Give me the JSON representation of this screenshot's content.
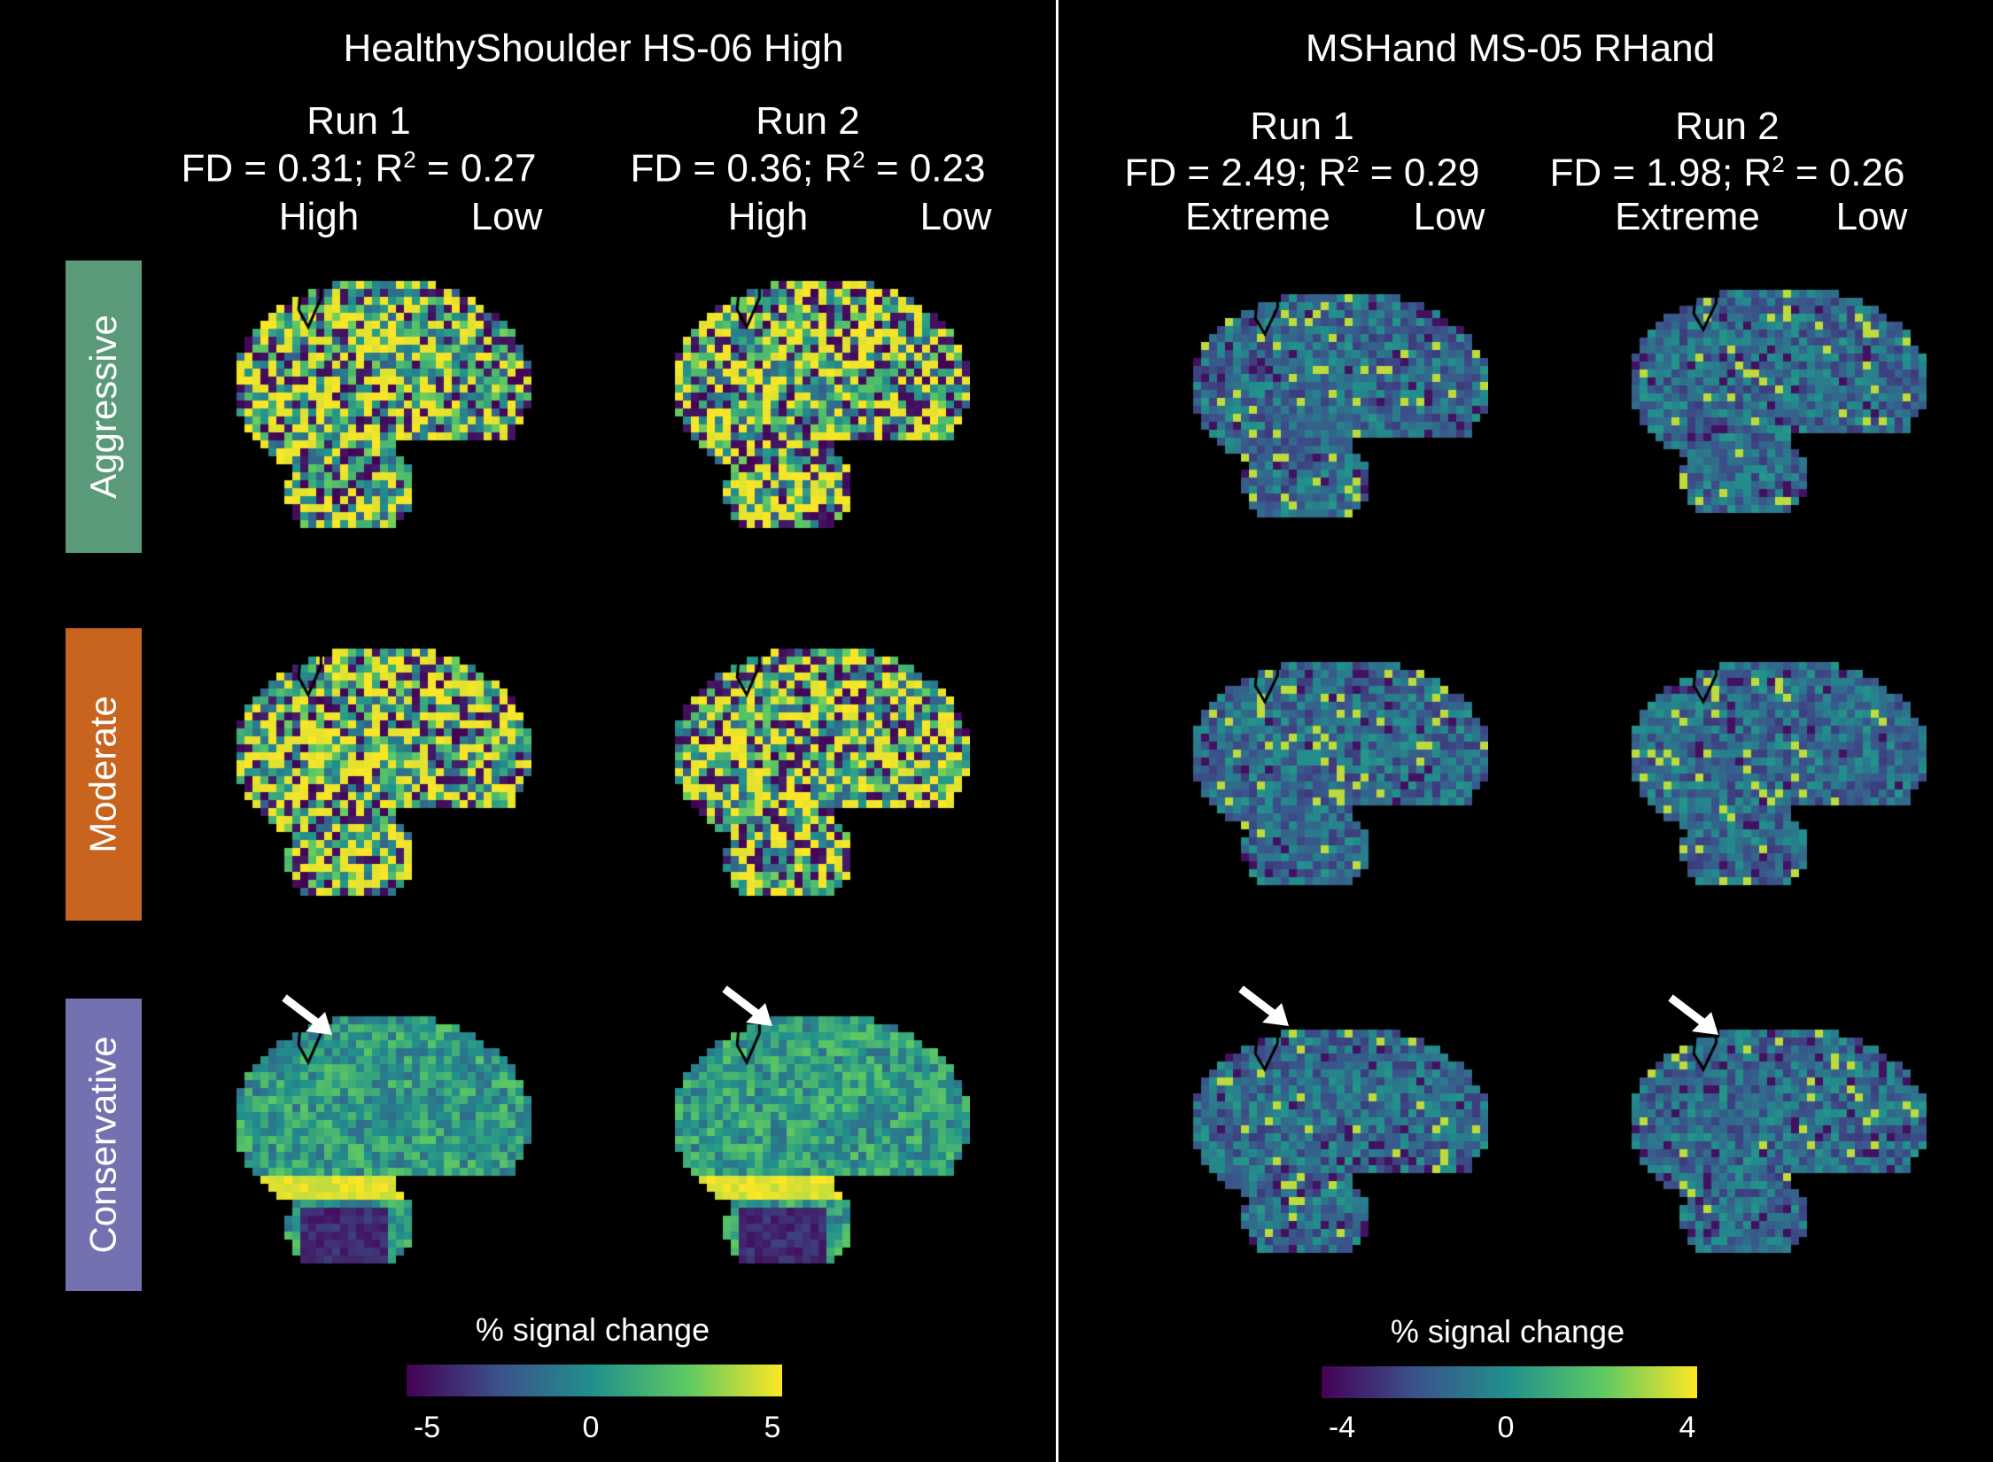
{
  "panels": [
    {
      "title": "HealthyShoulder HS-06 High",
      "runs": [
        {
          "run": "Run 1",
          "fd_label": "FD = 0.31; R",
          "fd_sup": "2",
          "fd_rest": " = 0.27",
          "level_a": "High",
          "level_b": "Low"
        },
        {
          "run": "Run 2",
          "fd_label": "FD = 0.36; R",
          "fd_sup": "2",
          "fd_rest": " = 0.23",
          "level_a": "High",
          "level_b": "Low"
        }
      ],
      "colorbar": {
        "label": "% signal change",
        "ticks": [
          "-5",
          "0",
          "5"
        ]
      }
    },
    {
      "title": "MSHand MS-05 RHand",
      "runs": [
        {
          "run": "Run 1",
          "fd_label": "FD = 2.49; R",
          "fd_sup": "2",
          "fd_rest": " = 0.29",
          "level_a": "Extreme",
          "level_b": "Low"
        },
        {
          "run": "Run 2",
          "fd_label": "FD = 1.98; R",
          "fd_sup": "2",
          "fd_rest": " = 0.26",
          "level_a": "Extreme",
          "level_b": "Low"
        }
      ],
      "colorbar": {
        "label": "% signal change",
        "ticks": [
          "-4",
          "0",
          "4"
        ]
      }
    }
  ],
  "row_labels": [
    {
      "text": "Aggressive",
      "color": "#5a9a78"
    },
    {
      "text": "Moderate",
      "color": "#c8641e"
    },
    {
      "text": "Conservative",
      "color": "#7471b0"
    }
  ],
  "colormap": "viridis",
  "colors": {
    "background": "#000000",
    "text": "#ffffff"
  }
}
